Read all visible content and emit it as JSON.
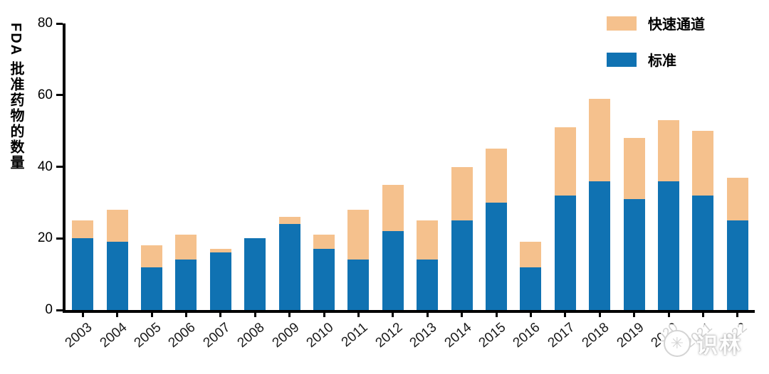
{
  "chart_data": {
    "type": "bar",
    "stacked": true,
    "title": "",
    "xlabel": "",
    "ylabel": "FDA 批准药物的数量",
    "ylim": [
      0,
      80
    ],
    "yticks": [
      0,
      20,
      40,
      60,
      80
    ],
    "grid": false,
    "categories": [
      "2003",
      "2004",
      "2005",
      "2006",
      "2007",
      "2008",
      "2009",
      "2010",
      "2011",
      "2012",
      "2013",
      "2014",
      "2015",
      "2016",
      "2017",
      "2018",
      "2019",
      "2020",
      "2021",
      "2022"
    ],
    "series": [
      {
        "name": "标准",
        "color": "#1072B2",
        "values": [
          20,
          19,
          12,
          14,
          16,
          20,
          24,
          17,
          14,
          22,
          14,
          25,
          30,
          12,
          32,
          36,
          31,
          36,
          32,
          25
        ]
      },
      {
        "name": "快速通道",
        "color": "#F5C18D",
        "values": [
          5,
          9,
          6,
          7,
          1,
          0,
          2,
          4,
          14,
          13,
          11,
          15,
          15,
          7,
          19,
          23,
          17,
          17,
          18,
          12
        ]
      }
    ],
    "legend": {
      "position": "top-right",
      "items": [
        {
          "label": "快速通道",
          "color": "#F5C18D"
        },
        {
          "label": "标准",
          "color": "#1072B2"
        }
      ]
    }
  },
  "watermark": {
    "logo": "✳",
    "text": "识林"
  }
}
